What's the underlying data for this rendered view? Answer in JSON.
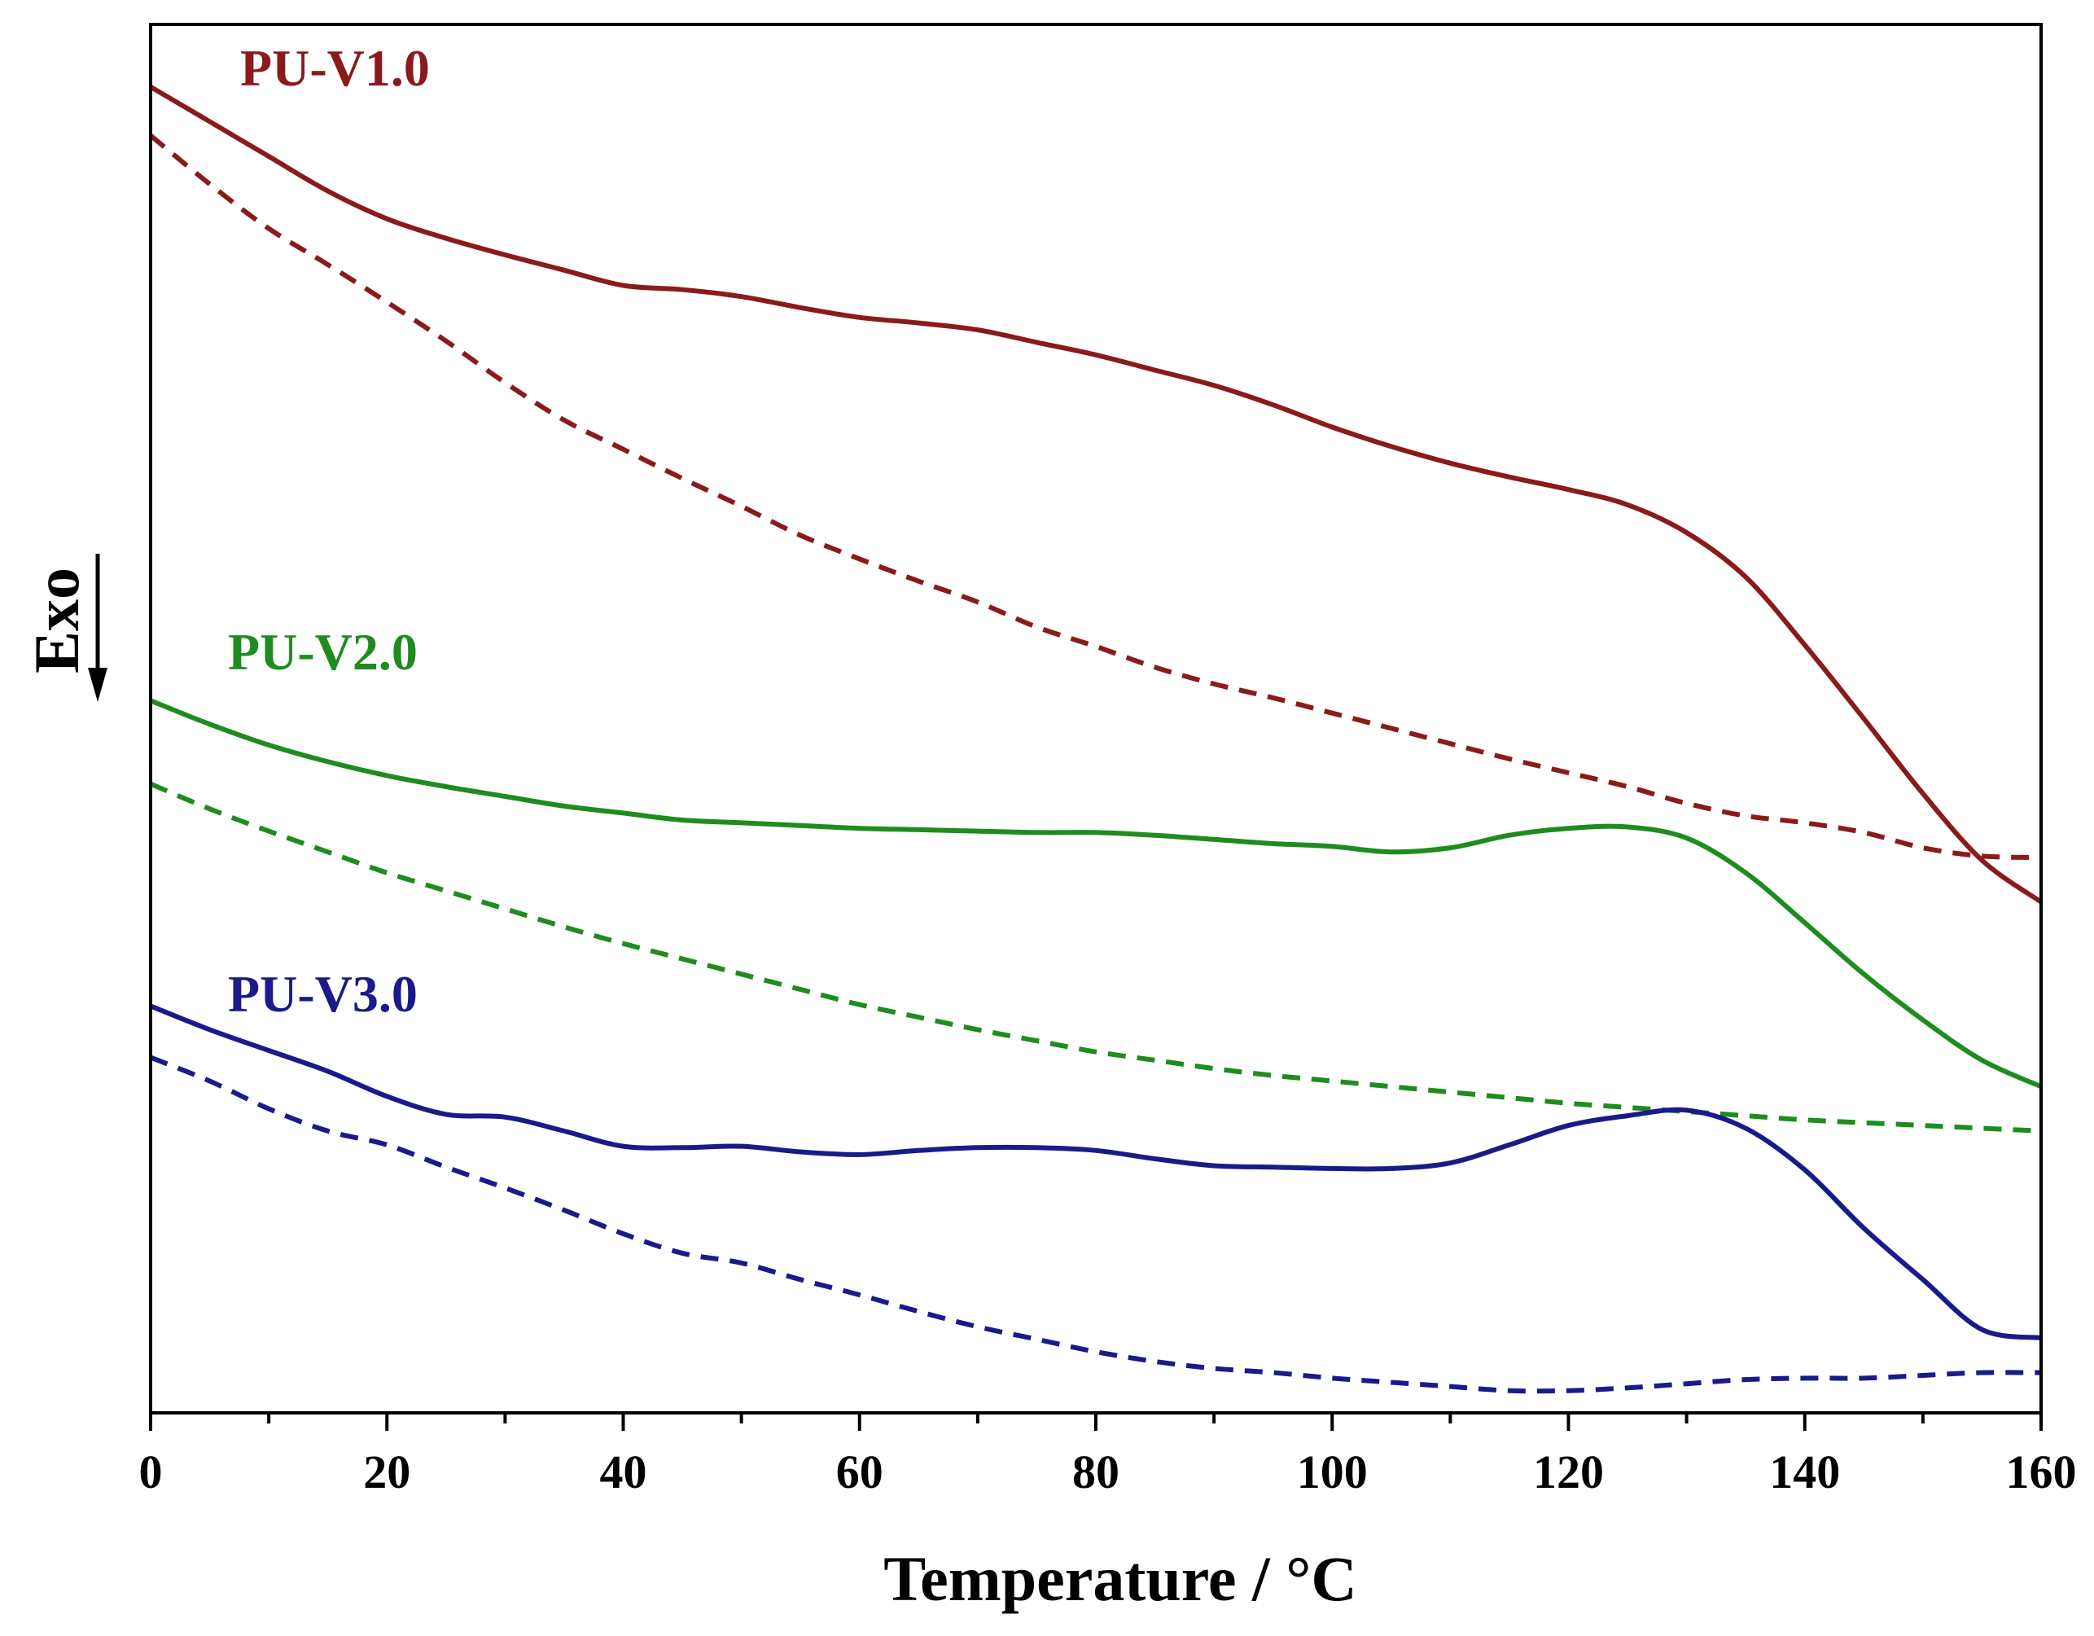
{
  "chart_data": {
    "type": "line",
    "title": "",
    "xlabel": "Temperature / °C",
    "ylabel": "Exo",
    "ylabel_arrow": "down",
    "xlim": [
      0,
      160
    ],
    "ylim": [
      0,
      100
    ],
    "y_ticks_labeled": false,
    "x_ticks": [
      0,
      20,
      40,
      60,
      80,
      100,
      120,
      140,
      160
    ],
    "x_minor_ticks": [
      10,
      30,
      50,
      70,
      90,
      110,
      130,
      150
    ],
    "grid": false,
    "legend": "inline labels",
    "series": [
      {
        "name": "PU-V1.0",
        "color": "#8B1A1A",
        "style": "solid",
        "x": [
          0,
          5,
          10,
          15,
          20,
          25,
          30,
          35,
          40,
          45,
          50,
          55,
          60,
          65,
          70,
          75,
          80,
          85,
          90,
          95,
          100,
          105,
          110,
          115,
          120,
          125,
          130,
          135,
          140,
          145,
          150,
          155,
          160
        ],
        "y": [
          95.5,
          93.0,
          90.5,
          88.0,
          86.0,
          84.6,
          83.4,
          82.3,
          81.2,
          80.9,
          80.4,
          79.6,
          78.9,
          78.5,
          78.0,
          77.1,
          76.2,
          75.1,
          74.0,
          72.6,
          71.0,
          69.6,
          68.4,
          67.4,
          66.5,
          65.4,
          63.4,
          60.2,
          55.3,
          50.0,
          44.6,
          39.8,
          36.8
        ]
      },
      {
        "name": "PU-V1.0",
        "color": "#8B1A1A",
        "style": "dashed",
        "x": [
          0,
          5,
          10,
          15,
          20,
          25,
          30,
          35,
          40,
          45,
          50,
          55,
          60,
          65,
          70,
          75,
          80,
          85,
          90,
          95,
          100,
          105,
          110,
          115,
          120,
          125,
          130,
          135,
          140,
          145,
          150,
          155,
          160
        ],
        "y": [
          92.0,
          88.5,
          85.3,
          82.7,
          80.0,
          77.2,
          74.2,
          71.5,
          69.4,
          67.3,
          65.3,
          63.2,
          61.5,
          59.9,
          58.4,
          56.6,
          55.2,
          53.7,
          52.5,
          51.5,
          50.4,
          49.3,
          48.2,
          47.1,
          46.1,
          45.1,
          43.9,
          43.0,
          42.5,
          41.8,
          40.7,
          40.1,
          40.0
        ]
      },
      {
        "name": "PU-V2.0",
        "color": "#1E8C1E",
        "style": "solid",
        "x": [
          0,
          5,
          10,
          15,
          20,
          25,
          30,
          35,
          40,
          45,
          50,
          55,
          60,
          65,
          70,
          75,
          80,
          85,
          90,
          95,
          100,
          105,
          110,
          115,
          120,
          125,
          130,
          135,
          140,
          145,
          150,
          155,
          160
        ],
        "y": [
          51.3,
          49.6,
          48.1,
          46.9,
          45.9,
          45.1,
          44.4,
          43.7,
          43.2,
          42.7,
          42.5,
          42.3,
          42.1,
          42.0,
          41.9,
          41.8,
          41.8,
          41.6,
          41.3,
          41.0,
          40.8,
          40.4,
          40.7,
          41.6,
          42.1,
          42.2,
          41.4,
          38.9,
          35.3,
          31.6,
          28.3,
          25.4,
          23.5
        ]
      },
      {
        "name": "PU-V2.0",
        "color": "#1E8C1E",
        "style": "dashed",
        "x": [
          0,
          5,
          10,
          15,
          20,
          25,
          30,
          35,
          40,
          45,
          50,
          55,
          60,
          65,
          70,
          75,
          80,
          85,
          90,
          95,
          100,
          105,
          110,
          115,
          120,
          125,
          130,
          135,
          140,
          145,
          150,
          155,
          160
        ],
        "y": [
          45.3,
          43.5,
          41.9,
          40.4,
          38.9,
          37.6,
          36.3,
          35.0,
          33.8,
          32.7,
          31.6,
          30.5,
          29.4,
          28.5,
          27.6,
          26.8,
          26.0,
          25.4,
          24.8,
          24.3,
          23.9,
          23.5,
          23.1,
          22.7,
          22.3,
          22.0,
          21.7,
          21.4,
          21.1,
          20.9,
          20.7,
          20.5,
          20.3
        ]
      },
      {
        "name": "PU-V3.0",
        "color": "#1A1A8C",
        "style": "solid",
        "x": [
          0,
          5,
          10,
          15,
          20,
          25,
          30,
          35,
          40,
          45,
          50,
          55,
          60,
          65,
          70,
          75,
          80,
          85,
          90,
          95,
          100,
          105,
          110,
          115,
          120,
          125,
          130,
          135,
          140,
          145,
          150,
          155,
          160
        ],
        "y": [
          29.3,
          27.6,
          26.1,
          24.6,
          22.8,
          21.5,
          21.3,
          20.3,
          19.2,
          19.1,
          19.2,
          18.8,
          18.6,
          18.9,
          19.1,
          19.1,
          18.9,
          18.3,
          17.8,
          17.7,
          17.6,
          17.6,
          18.0,
          19.3,
          20.7,
          21.4,
          21.8,
          20.5,
          17.5,
          13.3,
          9.6,
          6.0,
          5.4
        ]
      },
      {
        "name": "PU-V3.0",
        "color": "#1A1A8C",
        "style": "dashed",
        "x": [
          0,
          5,
          10,
          15,
          20,
          25,
          30,
          35,
          40,
          45,
          50,
          55,
          60,
          65,
          70,
          75,
          80,
          85,
          90,
          95,
          100,
          105,
          110,
          115,
          120,
          125,
          130,
          135,
          140,
          145,
          150,
          155,
          160
        ],
        "y": [
          25.6,
          23.9,
          21.9,
          20.3,
          19.3,
          17.7,
          16.2,
          14.6,
          12.9,
          11.5,
          10.8,
          9.6,
          8.5,
          7.3,
          6.2,
          5.3,
          4.4,
          3.7,
          3.2,
          2.9,
          2.5,
          2.2,
          1.9,
          1.6,
          1.6,
          1.8,
          2.1,
          2.4,
          2.5,
          2.5,
          2.7,
          2.9,
          2.9
        ]
      }
    ],
    "labels": [
      {
        "text": "PU-V1.0",
        "color": "#8B1A1A"
      },
      {
        "text": "PU-V2.0",
        "color": "#1E8C1E"
      },
      {
        "text": "PU-V3.0",
        "color": "#1A1A8C"
      }
    ]
  }
}
